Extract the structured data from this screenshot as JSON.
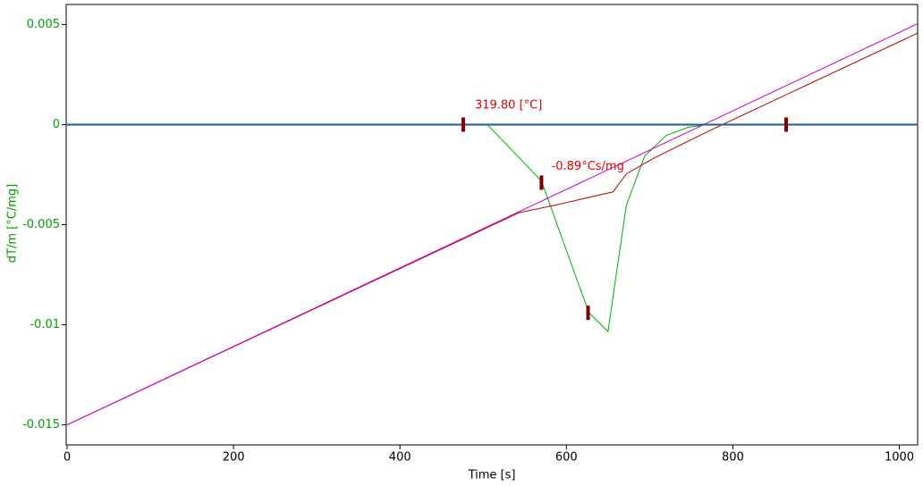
{
  "chart_data": {
    "type": "line",
    "xlabel": "Time [s]",
    "ylabel": "dT/m  [°C/mg]",
    "xlim": [
      0,
      1022
    ],
    "ylim": [
      -0.016,
      0.006
    ],
    "xticks": [
      0,
      200,
      400,
      600,
      800,
      1000
    ],
    "yticks": [
      0.005,
      0,
      -0.005,
      -0.01,
      -0.015
    ],
    "series": [
      {
        "color": "#00b000",
        "x": [
          0,
          505,
          570,
          627,
          650,
          661,
          672,
          694,
          720,
          747,
          769,
          1022
        ],
        "values": [
          0,
          0,
          -0.00282,
          -0.0094,
          -0.01034,
          -0.00716,
          -0.00403,
          -0.00157,
          -0.00054,
          -0.00013,
          0,
          0
        ]
      },
      {
        "color": "#b00000",
        "x": [
          0,
          543,
          586,
          656,
          672,
          704,
          769,
          1022
        ],
        "values": [
          -0.015,
          -0.0044,
          -0.00403,
          -0.00336,
          -0.00246,
          -0.0017,
          -0.00036,
          0.00457
        ]
      },
      {
        "color": "#d000d0",
        "x": [
          0,
          1022
        ],
        "values": [
          -0.015,
          0.00504
        ]
      },
      {
        "color": "#1f5f8b",
        "x": [
          0,
          1022
        ],
        "values": [
          0,
          0
        ]
      }
    ],
    "markers": {
      "color": "#800000",
      "x": [
        476,
        570,
        626,
        864
      ],
      "values": [
        0,
        -0.0029,
        -0.0094,
        0
      ]
    },
    "annotations": [
      {
        "text": "319.80 [°C]",
        "x": 490,
        "y": 0.00095,
        "color": "#e00000"
      },
      {
        "text": "-0.89°Cs/mg",
        "x": 582,
        "y": -0.0021,
        "color": "#e00000"
      }
    ]
  }
}
